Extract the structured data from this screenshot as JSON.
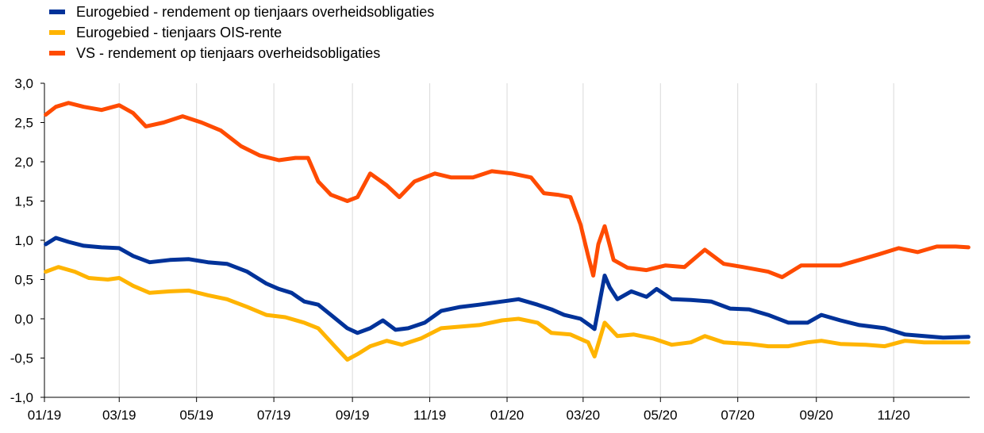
{
  "chart_data": {
    "type": "line",
    "title": "",
    "xlabel": "",
    "ylabel": "",
    "ylim": [
      -1.0,
      3.0
    ],
    "xlim": [
      "2019-01-01",
      "2020-12-31"
    ],
    "y_ticks": [
      "3,0",
      "2,5",
      "2,0",
      "1,5",
      "1,0",
      "0,5",
      "0,0",
      "-0,5",
      "-1,0"
    ],
    "x_ticks": [
      "01/19",
      "03/19",
      "05/19",
      "07/19",
      "09/19",
      "11/19",
      "01/20",
      "03/20",
      "05/20",
      "07/20",
      "09/20",
      "11/20"
    ],
    "grid": "vertical",
    "legend_position": "top-left",
    "series": [
      {
        "name": "Eurogebied - rendement op tienjaars overheidsobligaties",
        "color": "#003299",
        "points": [
          [
            "2019-01-02",
            0.95
          ],
          [
            "2019-01-10",
            1.03
          ],
          [
            "2019-01-20",
            0.98
          ],
          [
            "2019-02-01",
            0.93
          ],
          [
            "2019-02-15",
            0.91
          ],
          [
            "2019-03-01",
            0.9
          ],
          [
            "2019-03-12",
            0.8
          ],
          [
            "2019-03-25",
            0.72
          ],
          [
            "2019-04-10",
            0.75
          ],
          [
            "2019-04-25",
            0.76
          ],
          [
            "2019-05-10",
            0.72
          ],
          [
            "2019-05-25",
            0.7
          ],
          [
            "2019-06-10",
            0.6
          ],
          [
            "2019-06-25",
            0.45
          ],
          [
            "2019-07-05",
            0.38
          ],
          [
            "2019-07-15",
            0.33
          ],
          [
            "2019-07-25",
            0.22
          ],
          [
            "2019-08-05",
            0.18
          ],
          [
            "2019-08-15",
            0.05
          ],
          [
            "2019-08-28",
            -0.12
          ],
          [
            "2019-09-05",
            -0.18
          ],
          [
            "2019-09-15",
            -0.12
          ],
          [
            "2019-09-25",
            -0.02
          ],
          [
            "2019-10-05",
            -0.14
          ],
          [
            "2019-10-15",
            -0.12
          ],
          [
            "2019-10-28",
            -0.05
          ],
          [
            "2019-11-10",
            0.1
          ],
          [
            "2019-11-25",
            0.15
          ],
          [
            "2019-12-10",
            0.18
          ],
          [
            "2019-12-28",
            0.22
          ],
          [
            "2020-01-10",
            0.25
          ],
          [
            "2020-01-25",
            0.18
          ],
          [
            "2020-02-05",
            0.12
          ],
          [
            "2020-02-15",
            0.05
          ],
          [
            "2020-02-28",
            0.0
          ],
          [
            "2020-03-06",
            -0.08
          ],
          [
            "2020-03-10",
            -0.13
          ],
          [
            "2020-03-18",
            0.55
          ],
          [
            "2020-03-22",
            0.4
          ],
          [
            "2020-03-28",
            0.25
          ],
          [
            "2020-04-08",
            0.35
          ],
          [
            "2020-04-20",
            0.28
          ],
          [
            "2020-04-28",
            0.38
          ],
          [
            "2020-05-10",
            0.25
          ],
          [
            "2020-05-25",
            0.24
          ],
          [
            "2020-06-10",
            0.22
          ],
          [
            "2020-06-25",
            0.13
          ],
          [
            "2020-07-10",
            0.12
          ],
          [
            "2020-07-25",
            0.05
          ],
          [
            "2020-08-10",
            -0.05
          ],
          [
            "2020-08-25",
            -0.05
          ],
          [
            "2020-09-05",
            0.05
          ],
          [
            "2020-09-20",
            -0.02
          ],
          [
            "2020-10-05",
            -0.08
          ],
          [
            "2020-10-25",
            -0.12
          ],
          [
            "2020-11-10",
            -0.2
          ],
          [
            "2020-11-25",
            -0.22
          ],
          [
            "2020-12-10",
            -0.24
          ],
          [
            "2020-12-30",
            -0.23
          ]
        ]
      },
      {
        "name": "Eurogebied - tienjaars OIS-rente",
        "color": "#FFB400",
        "points": [
          [
            "2019-01-02",
            0.6
          ],
          [
            "2019-01-12",
            0.66
          ],
          [
            "2019-01-25",
            0.6
          ],
          [
            "2019-02-05",
            0.52
          ],
          [
            "2019-02-20",
            0.5
          ],
          [
            "2019-03-01",
            0.52
          ],
          [
            "2019-03-12",
            0.42
          ],
          [
            "2019-03-25",
            0.33
          ],
          [
            "2019-04-10",
            0.35
          ],
          [
            "2019-04-25",
            0.36
          ],
          [
            "2019-05-10",
            0.3
          ],
          [
            "2019-05-25",
            0.25
          ],
          [
            "2019-06-10",
            0.15
          ],
          [
            "2019-06-25",
            0.05
          ],
          [
            "2019-07-10",
            0.02
          ],
          [
            "2019-07-25",
            -0.05
          ],
          [
            "2019-08-05",
            -0.12
          ],
          [
            "2019-08-18",
            -0.35
          ],
          [
            "2019-08-28",
            -0.52
          ],
          [
            "2019-09-05",
            -0.45
          ],
          [
            "2019-09-15",
            -0.35
          ],
          [
            "2019-09-28",
            -0.28
          ],
          [
            "2019-10-10",
            -0.33
          ],
          [
            "2019-10-25",
            -0.25
          ],
          [
            "2019-11-10",
            -0.12
          ],
          [
            "2019-11-25",
            -0.1
          ],
          [
            "2019-12-10",
            -0.08
          ],
          [
            "2019-12-28",
            -0.02
          ],
          [
            "2020-01-10",
            0.0
          ],
          [
            "2020-01-25",
            -0.05
          ],
          [
            "2020-02-05",
            -0.18
          ],
          [
            "2020-02-20",
            -0.2
          ],
          [
            "2020-03-05",
            -0.3
          ],
          [
            "2020-03-10",
            -0.48
          ],
          [
            "2020-03-18",
            -0.05
          ],
          [
            "2020-03-28",
            -0.22
          ],
          [
            "2020-04-10",
            -0.2
          ],
          [
            "2020-04-25",
            -0.25
          ],
          [
            "2020-05-10",
            -0.33
          ],
          [
            "2020-05-25",
            -0.3
          ],
          [
            "2020-06-05",
            -0.22
          ],
          [
            "2020-06-20",
            -0.3
          ],
          [
            "2020-07-10",
            -0.32
          ],
          [
            "2020-07-25",
            -0.35
          ],
          [
            "2020-08-10",
            -0.35
          ],
          [
            "2020-08-25",
            -0.3
          ],
          [
            "2020-09-05",
            -0.28
          ],
          [
            "2020-09-20",
            -0.32
          ],
          [
            "2020-10-10",
            -0.33
          ],
          [
            "2020-10-25",
            -0.35
          ],
          [
            "2020-11-10",
            -0.28
          ],
          [
            "2020-11-25",
            -0.3
          ],
          [
            "2020-12-10",
            -0.3
          ],
          [
            "2020-12-30",
            -0.3
          ]
        ]
      },
      {
        "name": "VS - rendement op tienjaars overheidsobligaties",
        "color": "#FF4B00",
        "points": [
          [
            "2019-01-02",
            2.6
          ],
          [
            "2019-01-10",
            2.7
          ],
          [
            "2019-01-20",
            2.75
          ],
          [
            "2019-02-01",
            2.7
          ],
          [
            "2019-02-15",
            2.66
          ],
          [
            "2019-03-01",
            2.72
          ],
          [
            "2019-03-12",
            2.62
          ],
          [
            "2019-03-22",
            2.45
          ],
          [
            "2019-04-05",
            2.5
          ],
          [
            "2019-04-20",
            2.58
          ],
          [
            "2019-05-05",
            2.5
          ],
          [
            "2019-05-20",
            2.4
          ],
          [
            "2019-06-05",
            2.2
          ],
          [
            "2019-06-20",
            2.08
          ],
          [
            "2019-07-05",
            2.02
          ],
          [
            "2019-07-18",
            2.05
          ],
          [
            "2019-07-28",
            2.05
          ],
          [
            "2019-08-05",
            1.75
          ],
          [
            "2019-08-15",
            1.58
          ],
          [
            "2019-08-28",
            1.5
          ],
          [
            "2019-09-05",
            1.55
          ],
          [
            "2019-09-15",
            1.85
          ],
          [
            "2019-09-28",
            1.7
          ],
          [
            "2019-10-08",
            1.55
          ],
          [
            "2019-10-20",
            1.75
          ],
          [
            "2019-11-05",
            1.85
          ],
          [
            "2019-11-18",
            1.8
          ],
          [
            "2019-12-05",
            1.8
          ],
          [
            "2019-12-20",
            1.88
          ],
          [
            "2020-01-05",
            1.85
          ],
          [
            "2020-01-20",
            1.8
          ],
          [
            "2020-01-30",
            1.6
          ],
          [
            "2020-02-10",
            1.58
          ],
          [
            "2020-02-20",
            1.55
          ],
          [
            "2020-02-28",
            1.2
          ],
          [
            "2020-03-05",
            0.8
          ],
          [
            "2020-03-09",
            0.55
          ],
          [
            "2020-03-13",
            0.95
          ],
          [
            "2020-03-18",
            1.18
          ],
          [
            "2020-03-25",
            0.75
          ],
          [
            "2020-04-05",
            0.65
          ],
          [
            "2020-04-20",
            0.62
          ],
          [
            "2020-05-05",
            0.68
          ],
          [
            "2020-05-20",
            0.66
          ],
          [
            "2020-06-05",
            0.88
          ],
          [
            "2020-06-20",
            0.7
          ],
          [
            "2020-07-05",
            0.66
          ],
          [
            "2020-07-25",
            0.6
          ],
          [
            "2020-08-05",
            0.53
          ],
          [
            "2020-08-20",
            0.68
          ],
          [
            "2020-09-05",
            0.68
          ],
          [
            "2020-09-20",
            0.68
          ],
          [
            "2020-10-05",
            0.75
          ],
          [
            "2020-10-20",
            0.82
          ],
          [
            "2020-11-05",
            0.9
          ],
          [
            "2020-11-20",
            0.85
          ],
          [
            "2020-12-05",
            0.92
          ],
          [
            "2020-12-20",
            0.92
          ],
          [
            "2020-12-30",
            0.91
          ]
        ]
      }
    ]
  }
}
